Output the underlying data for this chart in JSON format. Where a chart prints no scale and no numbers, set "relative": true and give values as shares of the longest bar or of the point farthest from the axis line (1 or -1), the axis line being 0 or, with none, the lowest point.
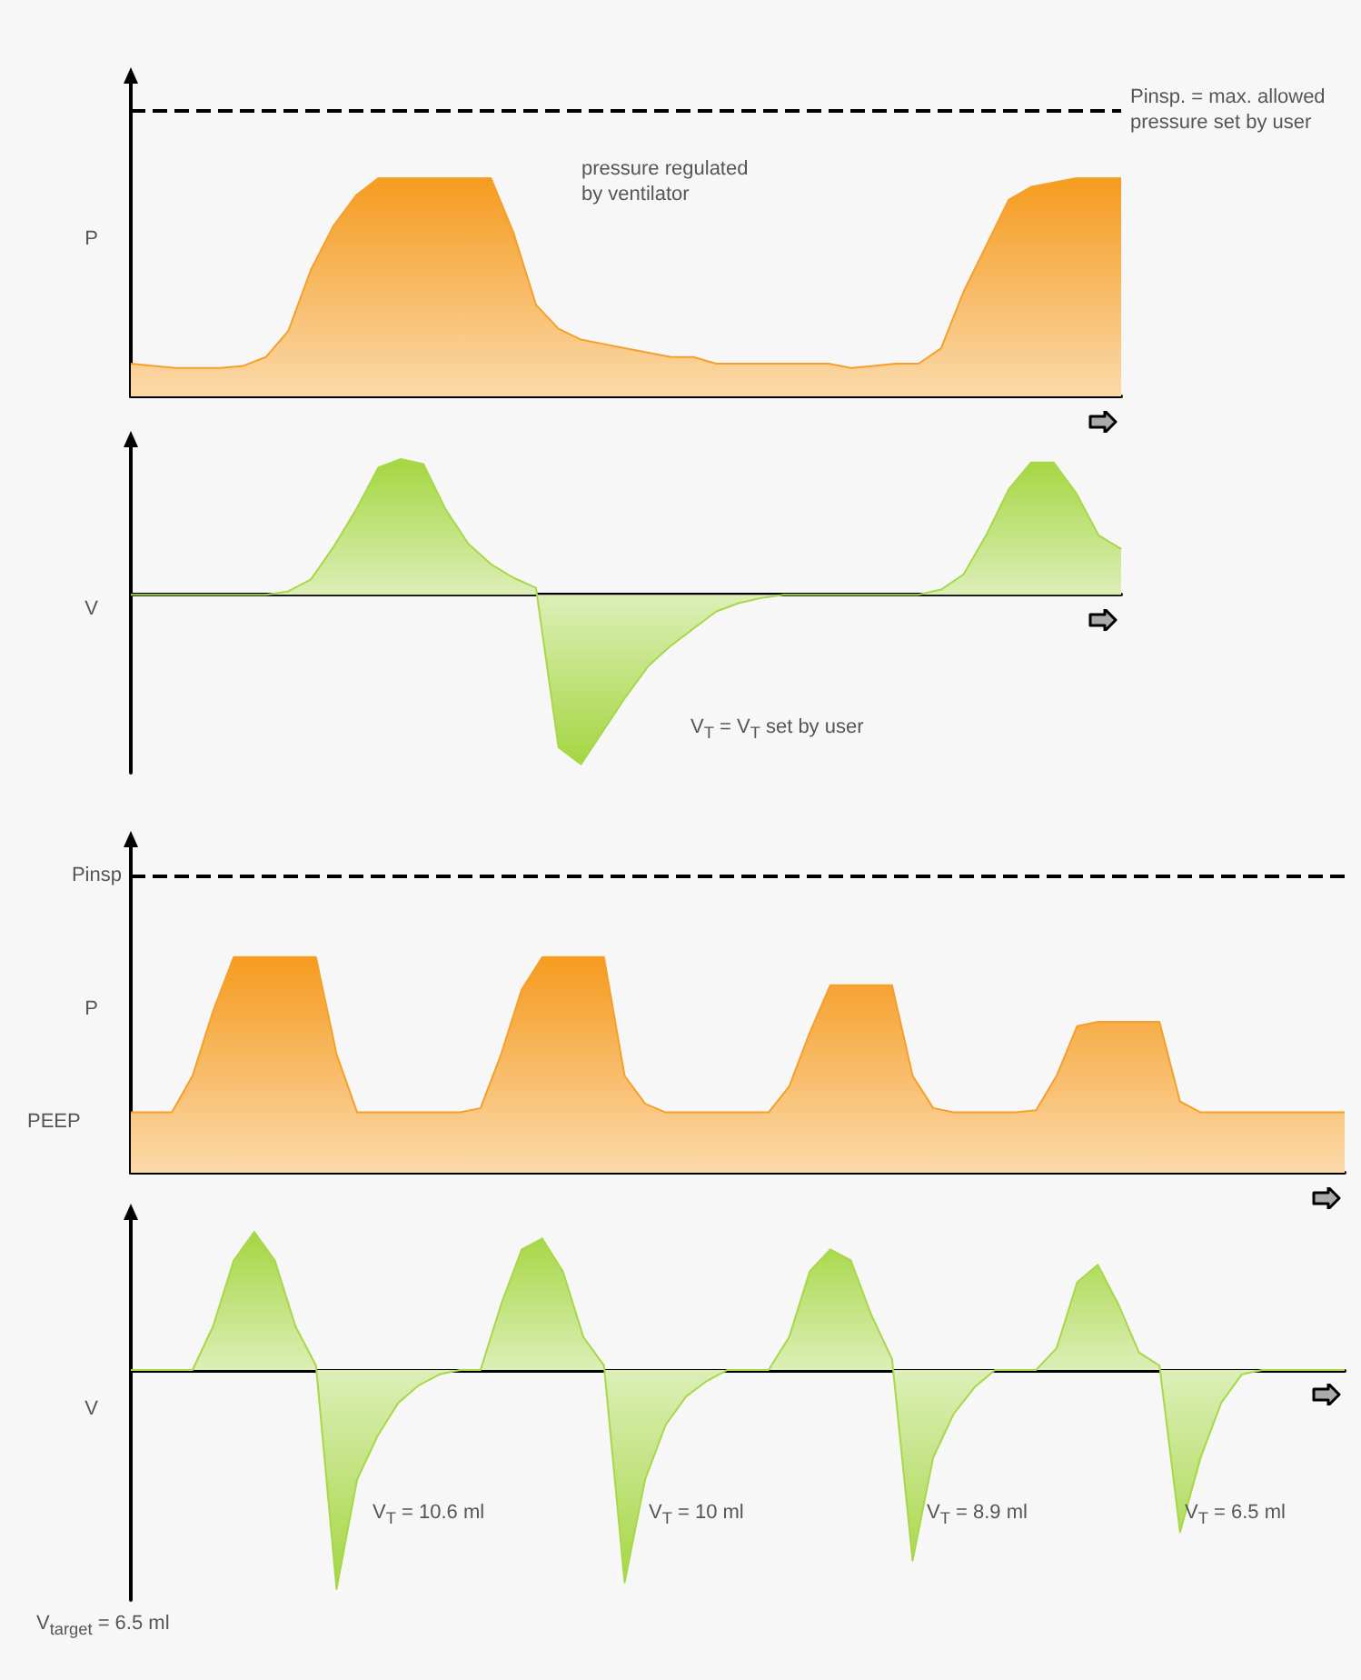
{
  "chart_data": [
    {
      "type": "area",
      "relative": true,
      "ylabel": "P",
      "categories": [
        null,
        null,
        null,
        null,
        null,
        null,
        null,
        null,
        null,
        null,
        null,
        null,
        null,
        null,
        null,
        null,
        null,
        null,
        null,
        null,
        null,
        null,
        null,
        null,
        null,
        null,
        null,
        null,
        null,
        null,
        null,
        null,
        null,
        null,
        null,
        null,
        null,
        null,
        null,
        null,
        null,
        null,
        null,
        null,
        null
      ],
      "series": [
        {
          "color": "#f5a02a",
          "values": [
            0.15,
            0.14,
            0.13,
            0.13,
            0.13,
            0.14,
            0.18,
            0.3,
            0.58,
            0.78,
            0.92,
            1,
            1,
            1,
            1,
            1,
            1,
            0.75,
            0.42,
            0.31,
            0.26,
            0.24,
            0.22,
            0.2,
            0.18,
            0.18,
            0.15,
            0.15,
            0.15,
            0.15,
            0.15,
            0.15,
            0.13,
            0.14,
            0.15,
            0.15,
            0.22,
            0.48,
            0.69,
            0.9,
            0.96,
            0.98,
            1,
            1,
            1
          ]
        }
      ],
      "ref_lines": [
        {
          "axis": "y",
          "value": 1.31,
          "label": "Pinsp. = max. allowed pressure set by user",
          "color": "#000000",
          "line_style": "dashed"
        }
      ],
      "annotations": [
        "pressure regulated by ventilator"
      ]
    },
    {
      "type": "area",
      "relative": true,
      "ylabel": "V",
      "categories": [
        null,
        null,
        null,
        null,
        null,
        null,
        null,
        null,
        null,
        null,
        null,
        null,
        null,
        null,
        null,
        null,
        null,
        null,
        null,
        null,
        null,
        null,
        null,
        null,
        null,
        null,
        null,
        null,
        null,
        null,
        null,
        null,
        null,
        null,
        null,
        null,
        null,
        null,
        null,
        null,
        null,
        null,
        null,
        null,
        null
      ],
      "series": [
        {
          "color": "#a8d84a",
          "values": [
            0,
            0,
            0,
            0,
            0,
            0,
            0,
            0.02,
            0.09,
            0.28,
            0.5,
            0.75,
            0.8,
            0.77,
            0.5,
            0.3,
            0.18,
            0.1,
            0.04,
            -0.9,
            -1,
            -0.8,
            -0.6,
            -0.42,
            -0.3,
            -0.2,
            -0.1,
            -0.05,
            -0.02,
            0,
            0,
            0,
            0,
            0,
            0,
            0,
            0.03,
            0.12,
            0.35,
            0.62,
            0.78,
            0.78,
            0.6,
            0.35,
            0.27
          ]
        }
      ],
      "annotations": [
        "V$_{T}$ = V$_{T}$ set by user"
      ]
    },
    {
      "type": "area",
      "relative": true,
      "ylabel": "P",
      "categories": [
        null,
        null,
        null,
        null,
        null,
        null,
        null,
        null,
        null,
        null,
        null,
        null,
        null,
        null,
        null,
        null,
        null,
        null,
        null,
        null,
        null,
        null,
        null,
        null,
        null,
        null,
        null,
        null,
        null,
        null,
        null,
        null,
        null,
        null,
        null,
        null,
        null,
        null,
        null,
        null,
        null,
        null,
        null,
        null,
        null,
        null,
        null,
        null,
        null,
        null,
        null,
        null,
        null,
        null,
        null,
        null,
        null,
        null,
        null,
        null
      ],
      "series": [
        {
          "color": "#f5a02a",
          "values": [
            0.28,
            0.28,
            0.28,
            0.45,
            0.75,
            1,
            1,
            1,
            1,
            1,
            0.55,
            0.28,
            0.28,
            0.28,
            0.28,
            0.28,
            0.28,
            0.3,
            0.55,
            0.85,
            1,
            1,
            1,
            1,
            0.45,
            0.32,
            0.28,
            0.28,
            0.28,
            0.28,
            0.28,
            0.28,
            0.4,
            0.65,
            0.87,
            0.87,
            0.87,
            0.87,
            0.45,
            0.3,
            0.28,
            0.28,
            0.28,
            0.28,
            0.29,
            0.45,
            0.68,
            0.7,
            0.7,
            0.7,
            0.7,
            0.33,
            0.28,
            0.28,
            0.28,
            0.28,
            0.28,
            0.28,
            0.28,
            0.28
          ]
        }
      ],
      "ref_lines": [
        {
          "axis": "y",
          "value": 1.38,
          "label": "Pinsp",
          "color": "#000000",
          "line_style": "dashed"
        }
      ],
      "annotations": [
        "PEEP"
      ]
    },
    {
      "type": "area",
      "relative": true,
      "ylabel": "V",
      "categories": [
        null,
        null,
        null,
        null,
        null,
        null,
        null,
        null,
        null,
        null,
        null,
        null,
        null,
        null,
        null,
        null,
        null,
        null,
        null,
        null,
        null,
        null,
        null,
        null,
        null,
        null,
        null,
        null,
        null,
        null,
        null,
        null,
        null,
        null,
        null,
        null,
        null,
        null,
        null,
        null,
        null,
        null,
        null,
        null,
        null,
        null,
        null,
        null,
        null,
        null,
        null,
        null,
        null,
        null,
        null,
        null,
        null,
        null,
        null,
        null
      ],
      "series": [
        {
          "color": "#a8d84a",
          "values": [
            0,
            0,
            0,
            0,
            0.2,
            0.5,
            0.63,
            0.5,
            0.2,
            0.02,
            -1,
            -0.5,
            -0.3,
            -0.15,
            -0.07,
            -0.02,
            0,
            0,
            0.3,
            0.55,
            0.6,
            0.45,
            0.15,
            0.02,
            -0.97,
            -0.5,
            -0.25,
            -0.12,
            -0.05,
            0,
            0,
            0,
            0.15,
            0.45,
            0.55,
            0.5,
            0.25,
            0.05,
            -0.87,
            -0.4,
            -0.2,
            -0.08,
            0,
            0,
            0,
            0.1,
            0.4,
            0.48,
            0.3,
            0.08,
            0.02,
            -0.74,
            -0.4,
            -0.15,
            -0.02,
            0,
            0,
            0,
            0,
            0
          ]
        }
      ],
      "annotations": [
        "V$_{T}$ = 10.6 ml",
        "V$_{T}$ = 10 ml",
        "V$_{T}$ = 8.9 ml",
        "V$_{T}$ = 6.5 ml",
        "V$_{target}$ = 6.5 ml"
      ]
    }
  ]
}
